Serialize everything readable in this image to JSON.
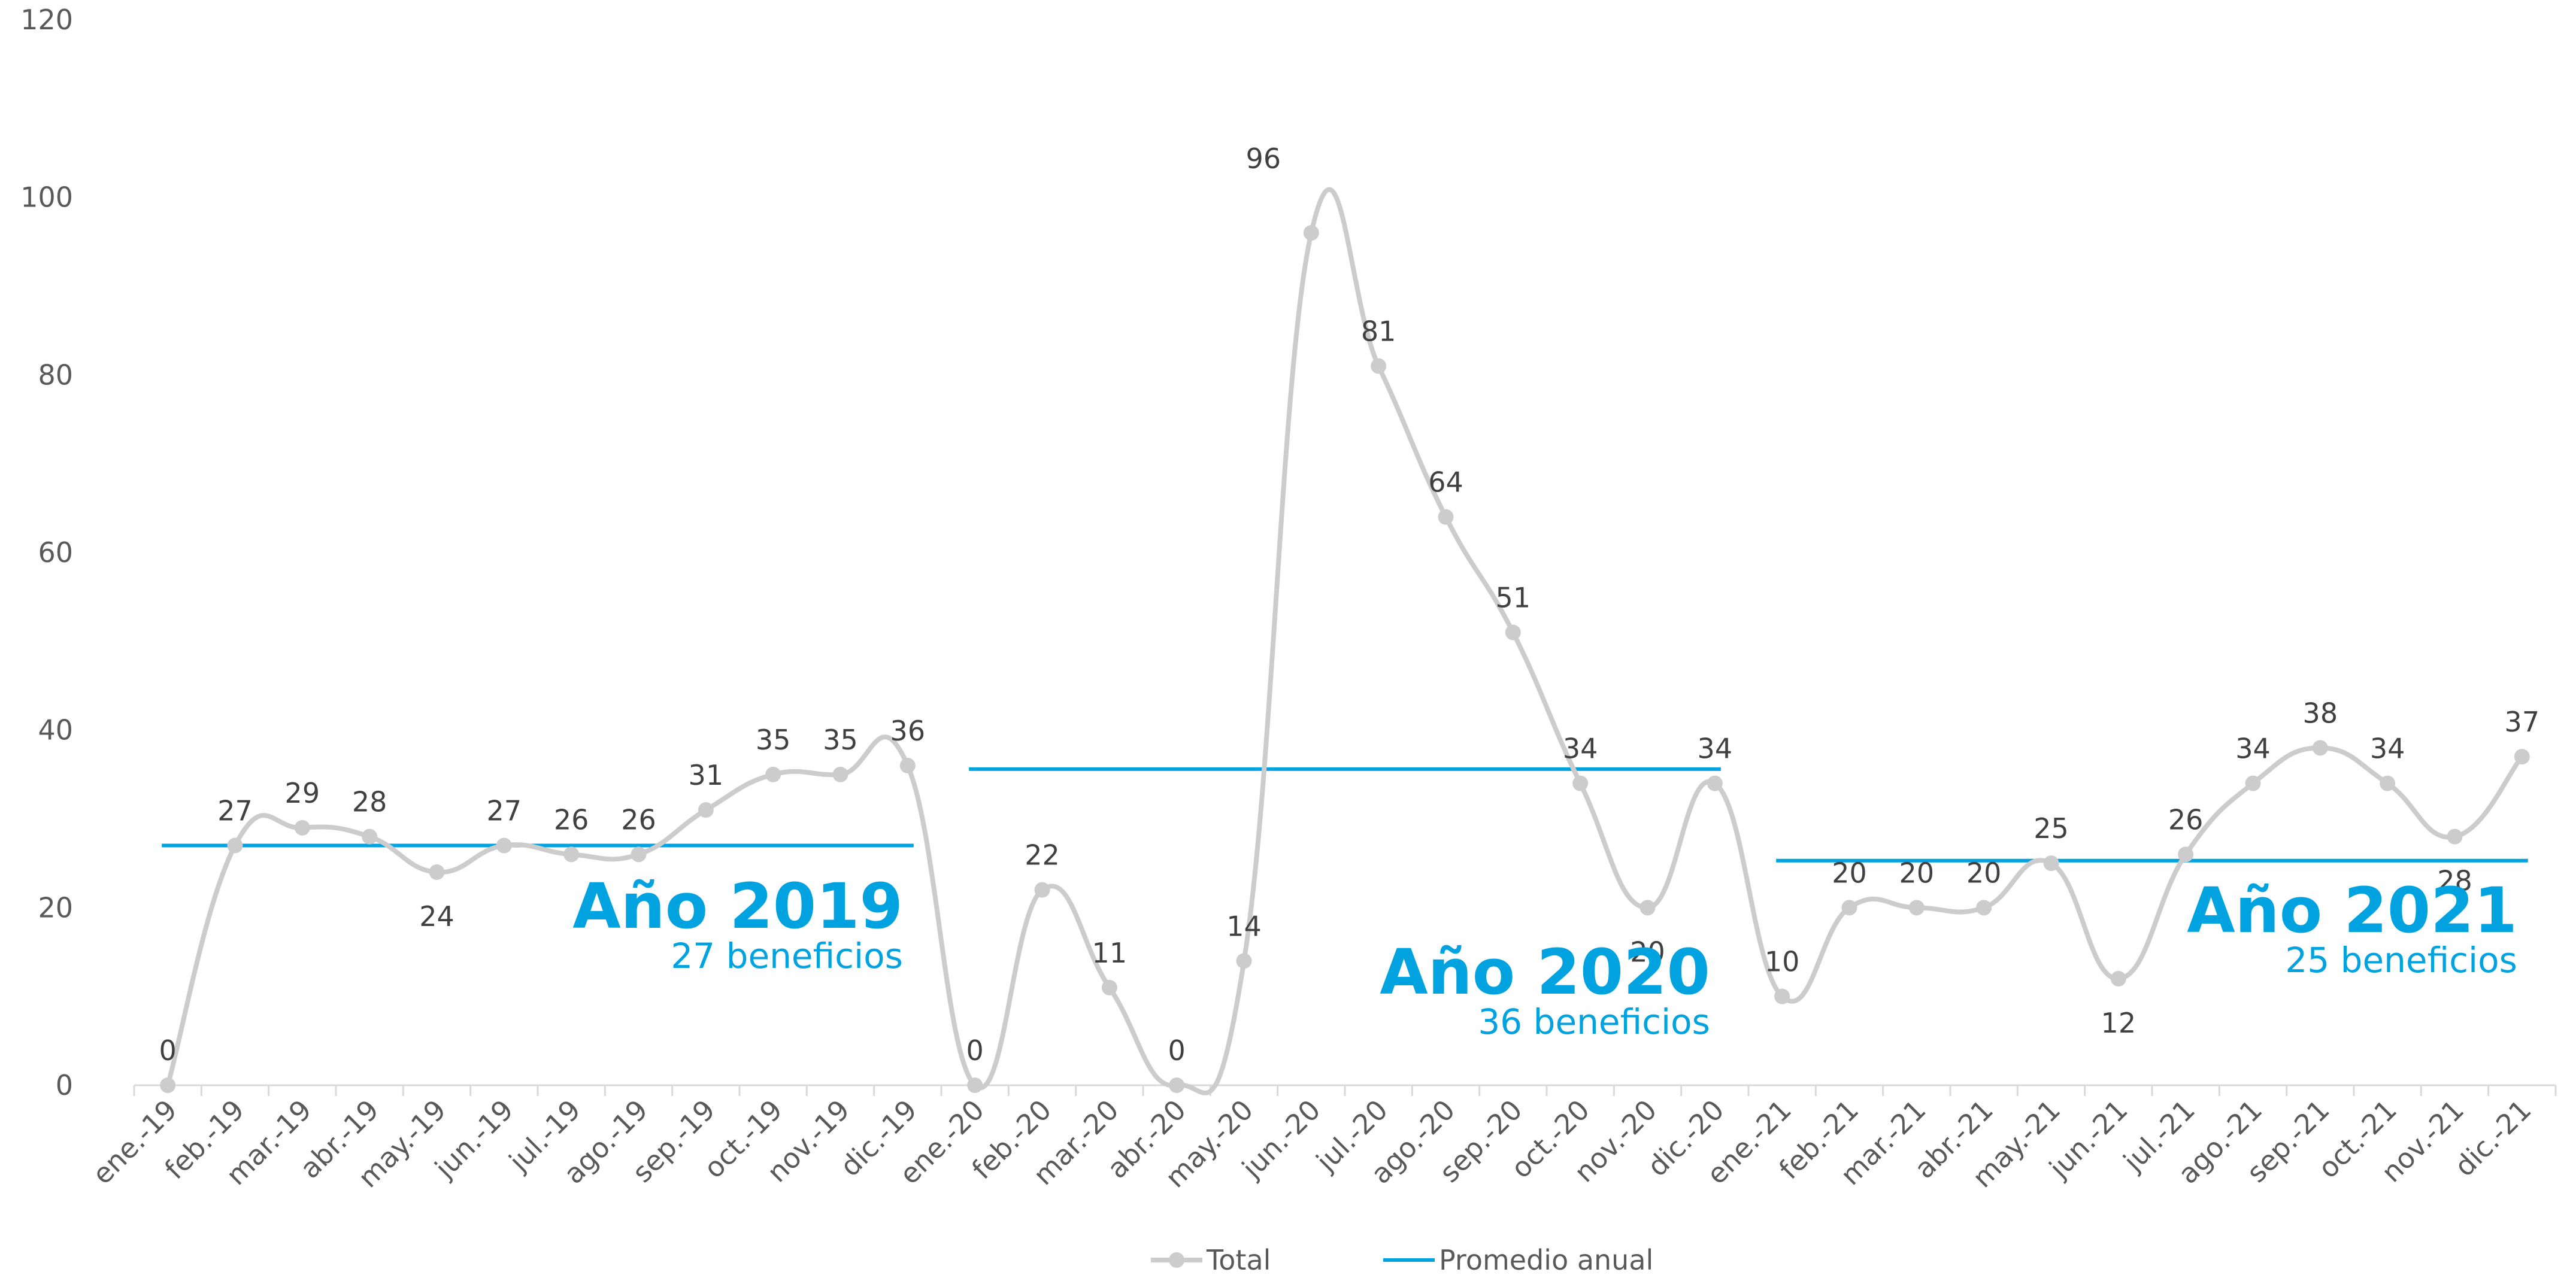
{
  "chart_data": {
    "type": "line",
    "categories": [
      "ene.-19",
      "feb.-19",
      "mar.-19",
      "abr.-19",
      "may.-19",
      "jun.-19",
      "jul.-19",
      "ago.-19",
      "sep.-19",
      "oct.-19",
      "nov.-19",
      "dic.-19",
      "ene.-20",
      "feb.-20",
      "mar.-20",
      "abr.-20",
      "may.-20",
      "jun.-20",
      "jul.-20",
      "ago.-20",
      "sep.-20",
      "oct.-20",
      "nov.-20",
      "dic.-20",
      "ene.-21",
      "feb.-21",
      "mar.-21",
      "abr.-21",
      "may.-21",
      "jun.-21",
      "jul.-21",
      "ago.-21",
      "sep.-21",
      "oct.-21",
      "nov.-21",
      "dic.-21"
    ],
    "series": [
      {
        "name": "Total",
        "color": "#cccccc",
        "values": [
          0,
          27,
          29,
          28,
          24,
          27,
          26,
          26,
          31,
          35,
          35,
          36,
          0,
          22,
          11,
          0,
          14,
          96,
          81,
          64,
          51,
          34,
          20,
          34,
          10,
          20,
          20,
          20,
          25,
          12,
          26,
          34,
          38,
          34,
          28,
          37
        ]
      },
      {
        "name": "Promedio anual",
        "color": "#00a3e0",
        "segments": [
          {
            "from": 0,
            "to": 11,
            "value": 27
          },
          {
            "from": 12,
            "to": 23,
            "value": 35.6
          },
          {
            "from": 24,
            "to": 35,
            "value": 25.3
          }
        ]
      }
    ],
    "annotations": [
      {
        "title": "Año 2019",
        "subtitle": "27 beneficios",
        "color": "#00a3e0"
      },
      {
        "title": "Año 2020",
        "subtitle": "36 beneficios",
        "color": "#00a3e0"
      },
      {
        "title": "Año 2021",
        "subtitle": "25 beneficios",
        "color": "#00a3e0"
      }
    ],
    "ylim": [
      0,
      120
    ],
    "yticks": [
      0,
      20,
      40,
      60,
      80,
      100,
      120
    ],
    "grid": false,
    "legend": "bottom-center",
    "smooth": true
  }
}
